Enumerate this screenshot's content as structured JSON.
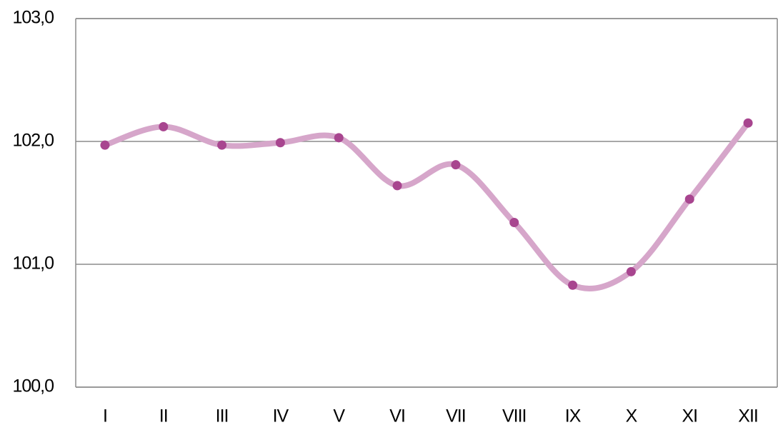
{
  "chart_data": {
    "type": "line",
    "categories": [
      "I",
      "II",
      "III",
      "IV",
      "V",
      "VI",
      "VII",
      "VIII",
      "IX",
      "X",
      "XI",
      "XII"
    ],
    "series": [
      {
        "color": "#d6a6ca",
        "marker_color": "#a8458f",
        "values": [
          101.97,
          102.12,
          101.97,
          101.99,
          102.03,
          101.64,
          101.81,
          101.34,
          100.83,
          100.94,
          101.53,
          102.15
        ]
      }
    ],
    "ylim": [
      100,
      103
    ],
    "yticks": [
      {
        "value": 100,
        "label": "100,0"
      },
      {
        "value": 101,
        "label": "101,0"
      },
      {
        "value": 102,
        "label": "102,0"
      },
      {
        "value": 103,
        "label": "103,0"
      }
    ],
    "grid": true,
    "smooth": true
  }
}
